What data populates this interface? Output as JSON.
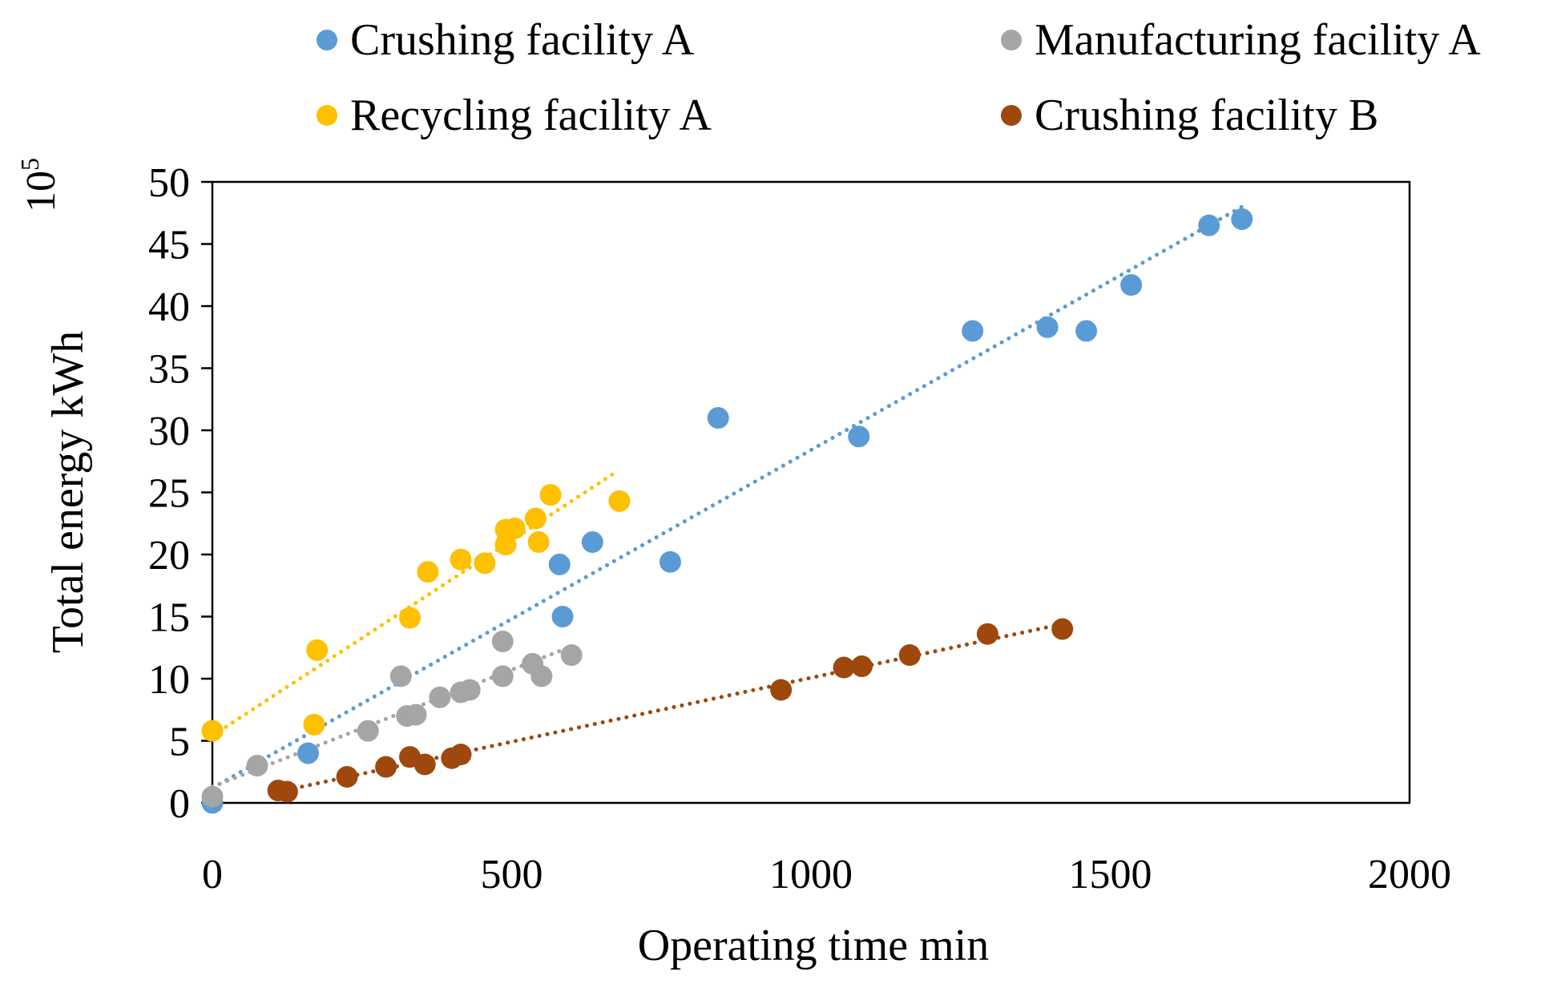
{
  "chart_data": {
    "type": "scatter",
    "title": "",
    "xlabel": "Operating time min",
    "ylabel": "Total energy kWh",
    "y_multiplier_label": {
      "base": "10",
      "exp": "5"
    },
    "xlim": [
      0,
      2000
    ],
    "ylim": [
      0,
      50
    ],
    "x_ticks": [
      "0",
      "500",
      "1000",
      "1500",
      "2000"
    ],
    "y_ticks": [
      "0",
      "5",
      "10",
      "15",
      "20",
      "25",
      "30",
      "35",
      "40",
      "45",
      "50"
    ],
    "grid": false,
    "legend_position": "top",
    "series": [
      {
        "name": "Crushing facility A",
        "color": "#5B9BD5",
        "points": [
          [
            0,
            0
          ],
          [
            160,
            4
          ],
          [
            580,
            19.2
          ],
          [
            585,
            15
          ],
          [
            635,
            21
          ],
          [
            765,
            19.4
          ],
          [
            845,
            31
          ],
          [
            1080,
            29.5
          ],
          [
            1270,
            38
          ],
          [
            1395,
            38.3
          ],
          [
            1460,
            38
          ],
          [
            1535,
            41.7
          ],
          [
            1665,
            46.5
          ],
          [
            1720,
            47
          ]
        ],
        "trendline": [
          [
            0,
            1.2
          ],
          [
            1720,
            48
          ]
        ]
      },
      {
        "name": "Manufacturing facility A",
        "color": "#A5A5A5",
        "points": [
          [
            0,
            0.5
          ],
          [
            75,
            3
          ],
          [
            260,
            5.8
          ],
          [
            315,
            10.2
          ],
          [
            325,
            7
          ],
          [
            340,
            7.1
          ],
          [
            380,
            8.5
          ],
          [
            415,
            8.9
          ],
          [
            430,
            9.1
          ],
          [
            485,
            10.2
          ],
          [
            485,
            13
          ],
          [
            535,
            11.2
          ],
          [
            550,
            10.2
          ],
          [
            600,
            11.9
          ]
        ],
        "trendline": [
          [
            0,
            1.3
          ],
          [
            600,
            12.6
          ]
        ]
      },
      {
        "name": "Recycling facility A",
        "color": "#FFC000",
        "points": [
          [
            0,
            5.8
          ],
          [
            170,
            6.3
          ],
          [
            175,
            12.3
          ],
          [
            330,
            14.9
          ],
          [
            360,
            18.6
          ],
          [
            415,
            19.6
          ],
          [
            455,
            19.3
          ],
          [
            490,
            20.8
          ],
          [
            490,
            22
          ],
          [
            505,
            22.1
          ],
          [
            540,
            22.9
          ],
          [
            545,
            21
          ],
          [
            565,
            24.8
          ],
          [
            680,
            24.3
          ]
        ],
        "trendline": [
          [
            0,
            5.4
          ],
          [
            670,
            26.5
          ]
        ]
      },
      {
        "name": "Crushing facility B",
        "color": "#9E480E",
        "points": [
          [
            110,
            1
          ],
          [
            125,
            0.9
          ],
          [
            225,
            2.1
          ],
          [
            290,
            2.9
          ],
          [
            330,
            3.7
          ],
          [
            355,
            3.1
          ],
          [
            400,
            3.6
          ],
          [
            415,
            3.9
          ],
          [
            950,
            9.1
          ],
          [
            1055,
            10.9
          ],
          [
            1085,
            11
          ],
          [
            1165,
            11.9
          ],
          [
            1295,
            13.6
          ],
          [
            1420,
            14
          ]
        ],
        "trendline": [
          [
            110,
            0.9
          ],
          [
            1420,
            14.4
          ]
        ]
      }
    ]
  }
}
